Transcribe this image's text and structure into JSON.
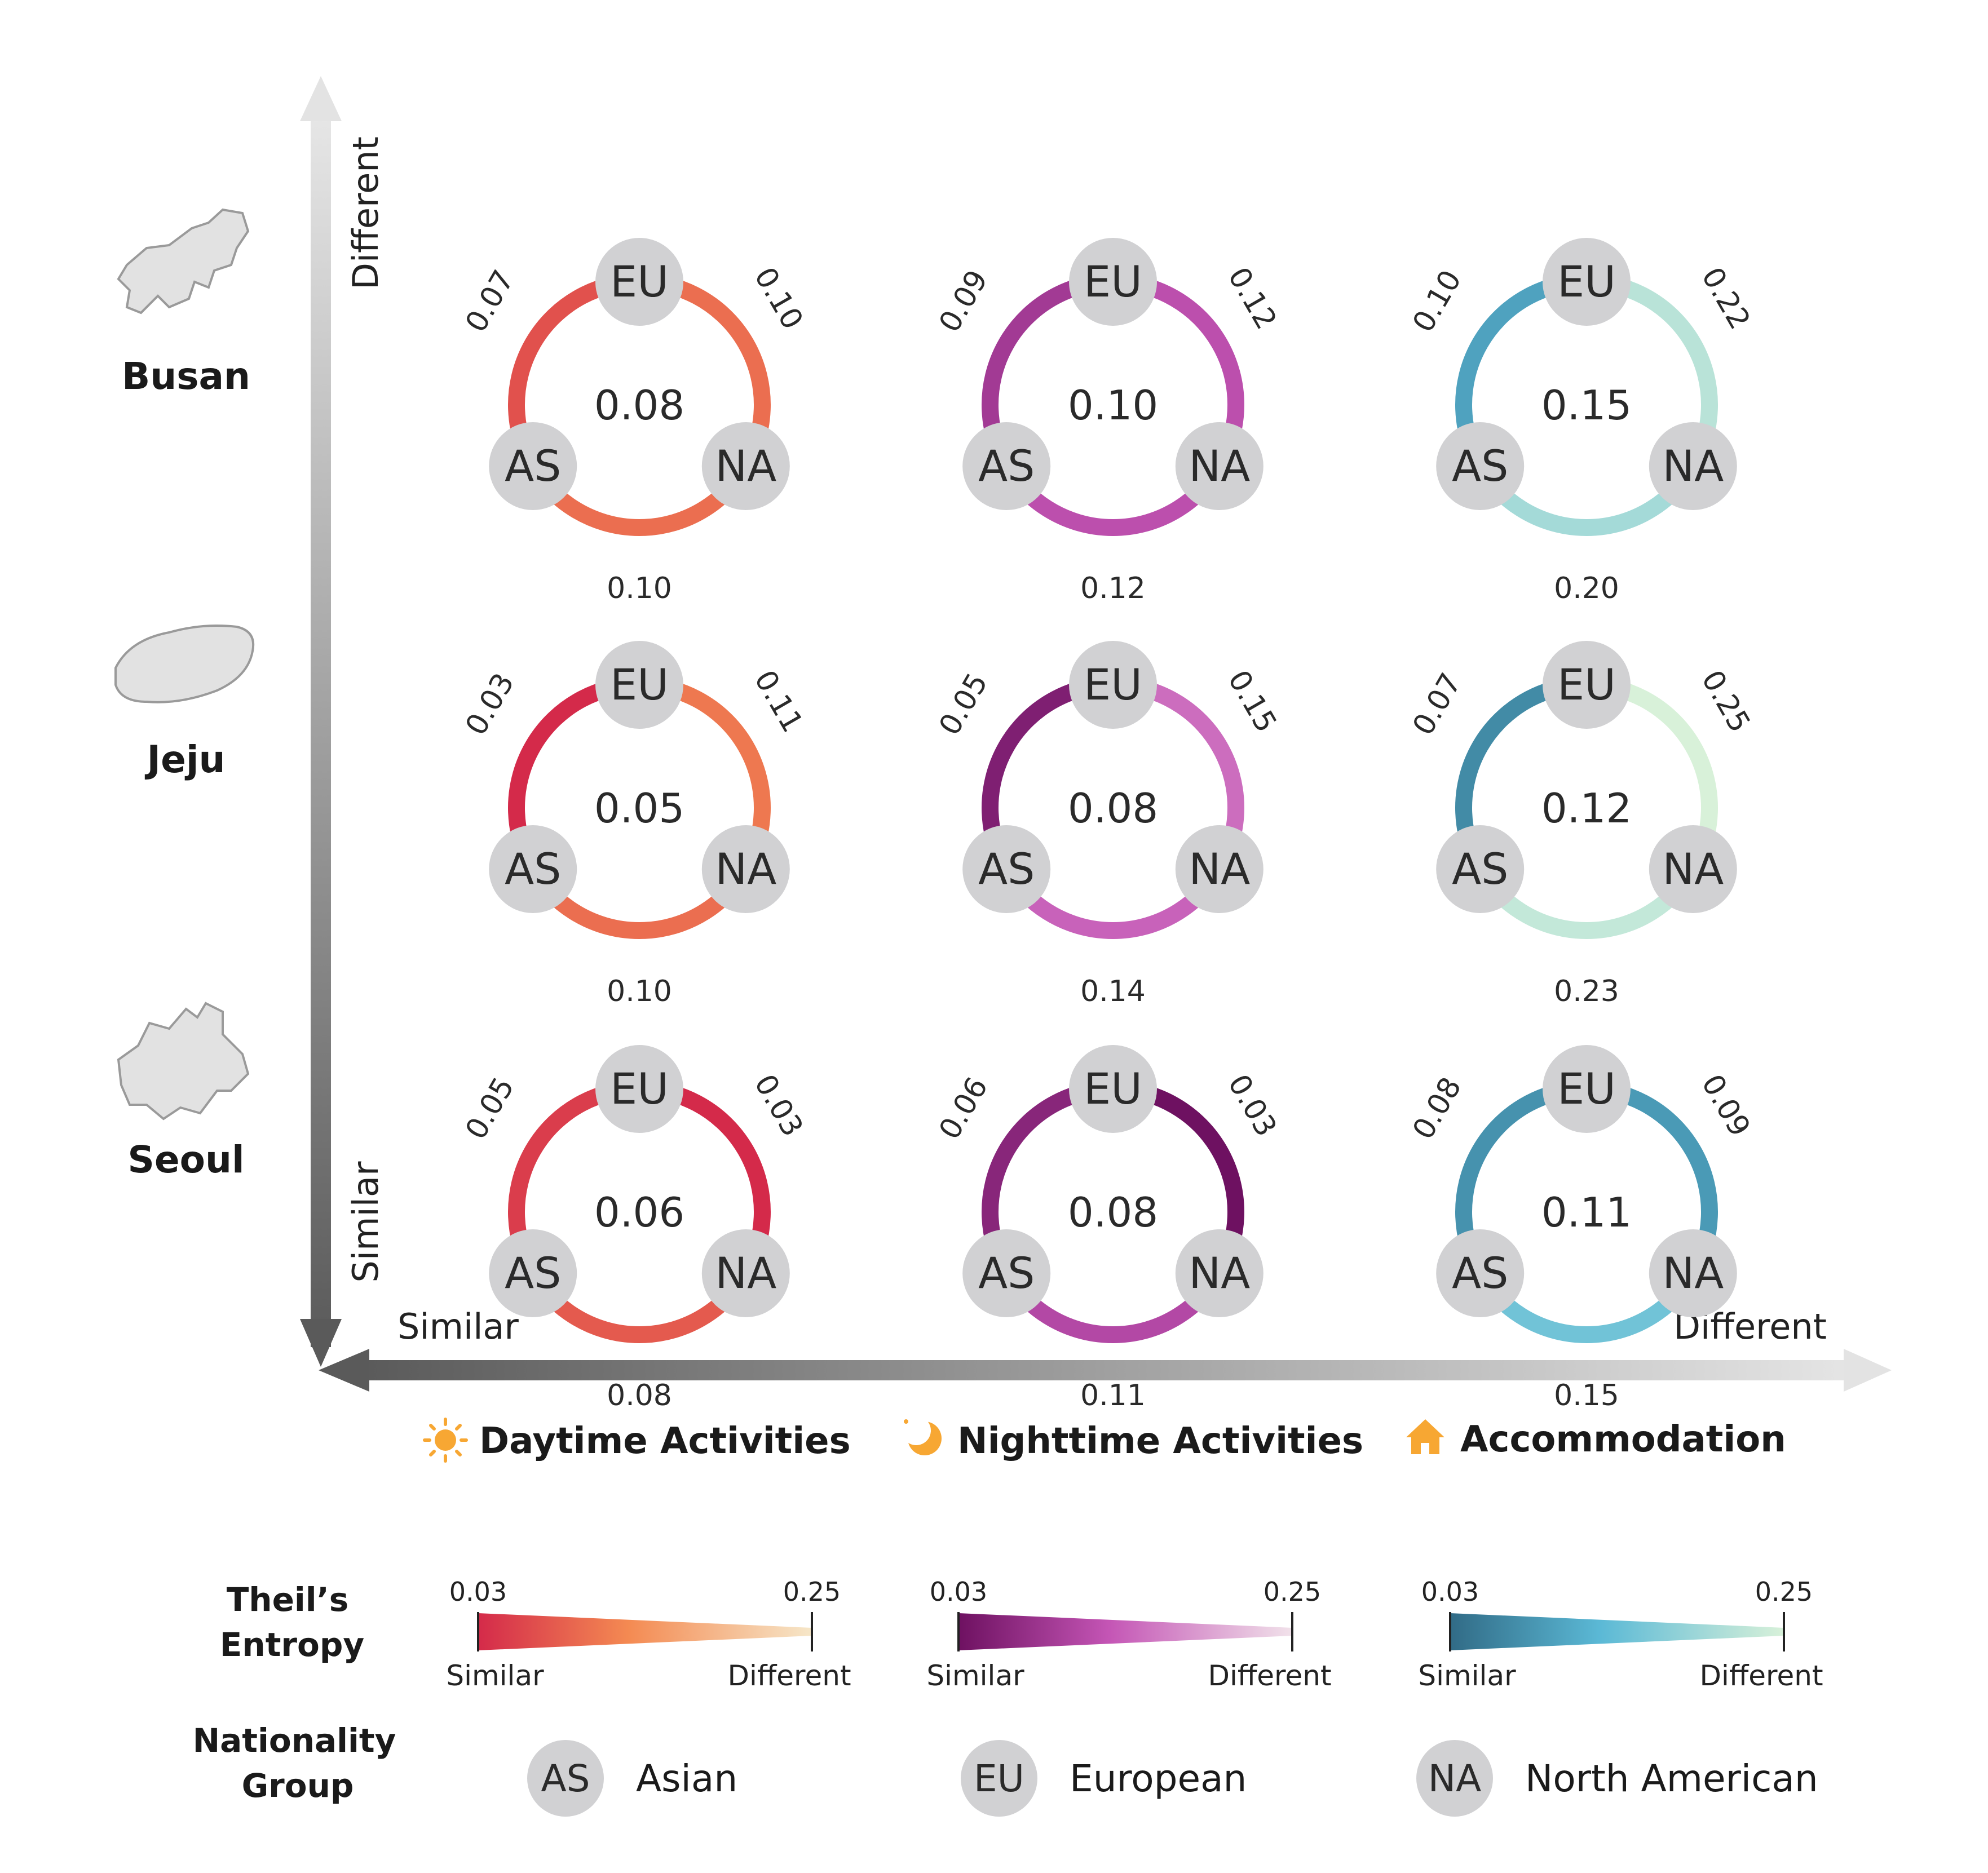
{
  "axes": {
    "y_top_label": "Different",
    "y_bottom_label": "Similar",
    "x_left_label": "Similar",
    "x_right_label": "Different"
  },
  "regions": [
    {
      "name": "Busan",
      "icon": "busan-map-icon"
    },
    {
      "name": "Jeju",
      "icon": "jeju-map-icon"
    },
    {
      "name": "Seoul",
      "icon": "seoul-map-icon"
    }
  ],
  "categories": [
    {
      "label": "Daytime Activities",
      "icon": "sun-icon"
    },
    {
      "label": "Nighttime Activities",
      "icon": "moon-icon"
    },
    {
      "label": "Accommodation",
      "icon": "house-icon"
    }
  ],
  "node_labels": {
    "as": "AS",
    "eu": "EU",
    "na": "NA"
  },
  "chart_data": {
    "type": "table",
    "rows": [
      "Busan",
      "Jeju",
      "Seoul"
    ],
    "columns": [
      "Daytime Activities",
      "Nighttime Activities",
      "Accommodation"
    ],
    "cells": [
      [
        {
          "center": "0.08",
          "as_eu": "0.07",
          "eu_na": "0.10",
          "as_na": "0.10"
        },
        {
          "center": "0.10",
          "as_eu": "0.09",
          "eu_na": "0.12",
          "as_na": "0.12"
        },
        {
          "center": "0.15",
          "as_eu": "0.10",
          "eu_na": "0.22",
          "as_na": "0.20"
        }
      ],
      [
        {
          "center": "0.05",
          "as_eu": "0.03",
          "eu_na": "0.11",
          "as_na": "0.10"
        },
        {
          "center": "0.08",
          "as_eu": "0.05",
          "eu_na": "0.15",
          "as_na": "0.14"
        },
        {
          "center": "0.12",
          "as_eu": "0.07",
          "eu_na": "0.25",
          "as_na": "0.23"
        }
      ],
      [
        {
          "center": "0.06",
          "as_eu": "0.05",
          "eu_na": "0.03",
          "as_na": "0.08"
        },
        {
          "center": "0.08",
          "as_eu": "0.06",
          "eu_na": "0.03",
          "as_na": "0.11"
        },
        {
          "center": "0.11",
          "as_eu": "0.08",
          "eu_na": "0.09",
          "as_na": "0.15"
        }
      ]
    ],
    "scale": {
      "min": 0.03,
      "max": 0.25
    },
    "color_scales": [
      {
        "from": "#d42a4a",
        "mid": "#f48a52",
        "to": "#f6e7c9"
      },
      {
        "from": "#6e1161",
        "mid": "#c455b5",
        "to": "#f1e2ea"
      },
      {
        "from": "#316b86",
        "mid": "#5bb9d6",
        "to": "#d8f1d9"
      }
    ]
  },
  "legend": {
    "entropy_title_line1": "Theil’s",
    "entropy_title_line2": "Entropy",
    "scale_min_label": "0.03",
    "scale_max_label": "0.25",
    "similar_label": "Similar",
    "different_label": "Different",
    "nationality_title_line1": "Nationality",
    "nationality_title_line2": "Group",
    "nationalities": [
      {
        "code": "AS",
        "name": "Asian"
      },
      {
        "code": "EU",
        "name": "European"
      },
      {
        "code": "NA",
        "name": "North American"
      }
    ]
  },
  "colors": {
    "node_fill": "#d1d1d3",
    "text": "#222222",
    "icon_orange": "#f7a733"
  }
}
